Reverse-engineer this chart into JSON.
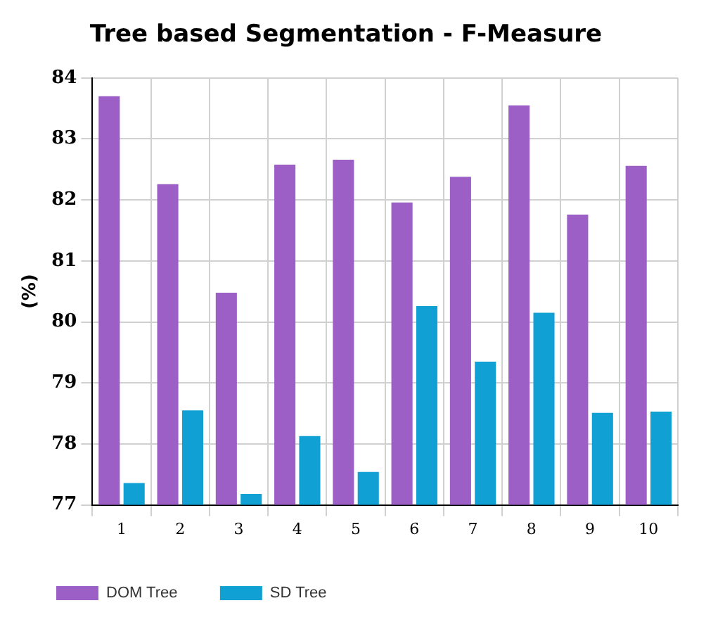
{
  "chart_data": {
    "type": "bar",
    "title": "Tree based Segmentation - F-Measure",
    "ylabel": "(%)",
    "categories": [
      "1",
      "2",
      "3",
      "4",
      "5",
      "6",
      "7",
      "8",
      "9",
      "10"
    ],
    "series": [
      {
        "name": "DOM Tree",
        "color": "#9b5fc6",
        "values": [
          83.7,
          82.26,
          80.48,
          82.58,
          82.66,
          81.96,
          82.38,
          83.55,
          81.76,
          82.56
        ]
      },
      {
        "name": "SD Tree",
        "color": "#10a0d3",
        "values": [
          77.36,
          78.55,
          77.18,
          78.13,
          77.54,
          80.26,
          79.35,
          80.15,
          78.51,
          78.53
        ]
      }
    ],
    "ylim": [
      77,
      84
    ],
    "yticks": [
      77,
      78,
      79,
      80,
      81,
      82,
      83,
      84
    ],
    "grid": true,
    "legend": "bottom left"
  }
}
